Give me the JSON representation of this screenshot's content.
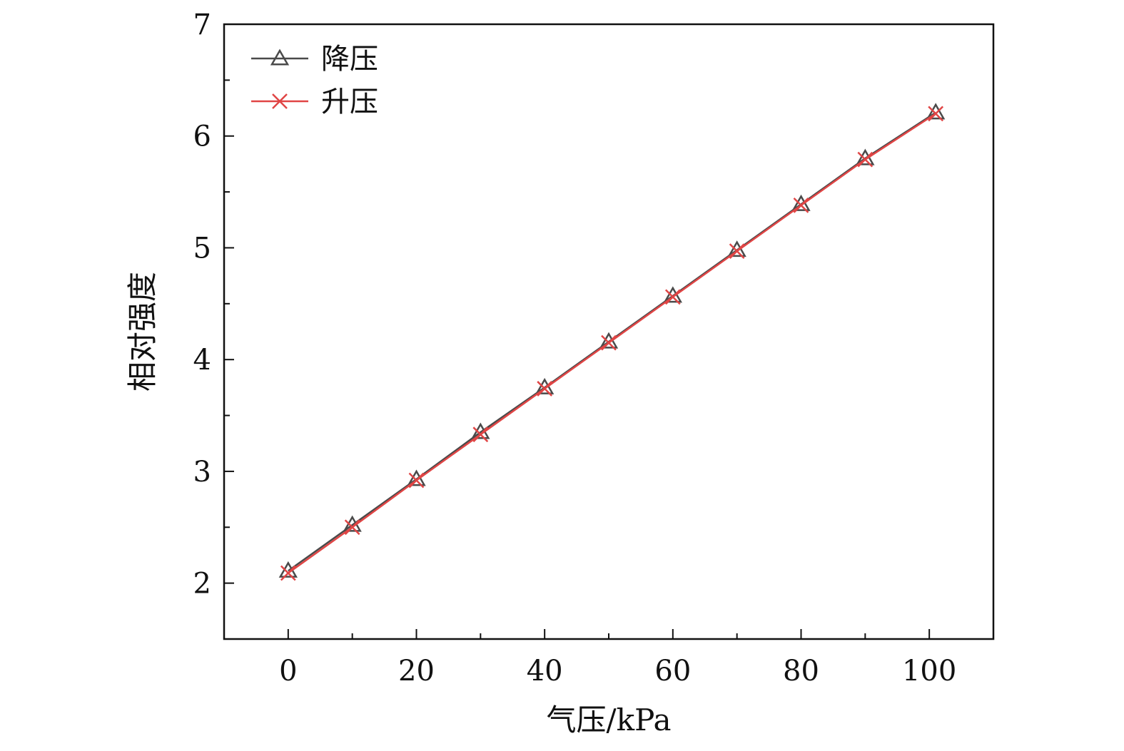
{
  "chart_data": {
    "type": "line",
    "title": "",
    "xlabel": "气压/kPa",
    "ylabel": "相对强度",
    "xlim": [
      -10,
      110
    ],
    "ylim": [
      1.5,
      7
    ],
    "x_ticks": [
      0,
      20,
      40,
      60,
      80,
      100
    ],
    "x_minor_ticks": [
      10,
      30,
      50,
      70,
      90
    ],
    "y_ticks": [
      2,
      3,
      4,
      5,
      6,
      7
    ],
    "y_minor_ticks": [
      2.5,
      3.5,
      4.5,
      5.5,
      6.5
    ],
    "grid": false,
    "legend_position": "top-left",
    "x": [
      0,
      10,
      20,
      30,
      40,
      50,
      60,
      70,
      80,
      90,
      101
    ],
    "series": [
      {
        "name": "降压",
        "marker": "triangle",
        "color": "#4a4a4a",
        "values": [
          2.11,
          2.52,
          2.93,
          3.35,
          3.75,
          4.16,
          4.57,
          4.98,
          5.39,
          5.8,
          6.21
        ]
      },
      {
        "name": "升压",
        "marker": "x",
        "color": "#e04545",
        "values": [
          2.09,
          2.5,
          2.92,
          3.33,
          3.74,
          4.15,
          4.56,
          4.97,
          5.38,
          5.79,
          6.2
        ]
      }
    ]
  }
}
